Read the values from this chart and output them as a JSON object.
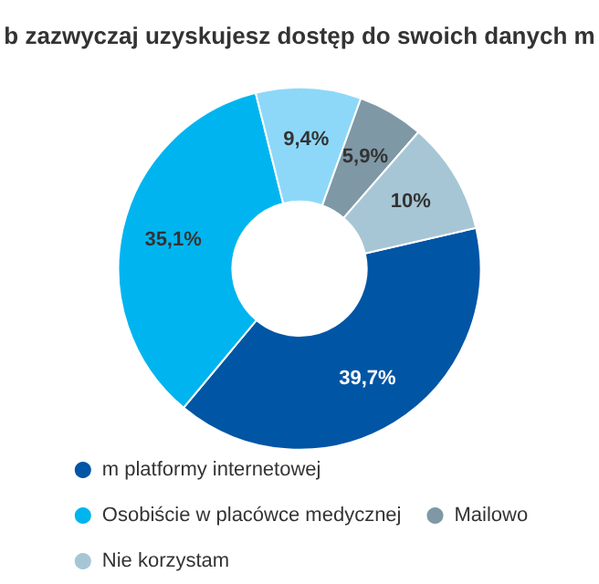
{
  "chart_data": {
    "type": "donut",
    "title": "b zazwyczaj uzyskujesz dostęp do swoich danych m",
    "categories": [
      "m platformy internetowej",
      "Osobiście w placówce medycznej",
      null,
      "Mailowo",
      "Nie korzystam"
    ],
    "values": [
      39.7,
      35.1,
      9.4,
      5.9,
      10
    ],
    "value_labels": [
      "39,7%",
      "35,1%",
      "9,4%",
      "5,9%",
      "10%"
    ],
    "colors": [
      "#0055a5",
      "#00b5ef",
      "#8dd8f8",
      "#7f98a6",
      "#a7c6d5"
    ],
    "legend": "bottom"
  }
}
